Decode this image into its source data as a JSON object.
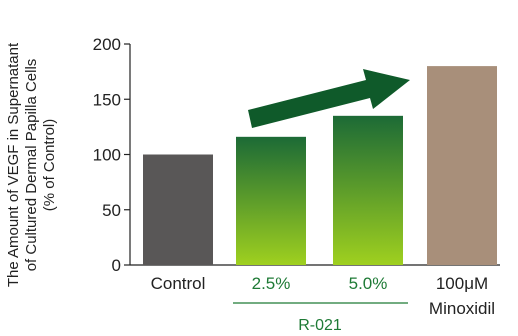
{
  "chart_data": {
    "type": "bar",
    "categories": [
      "Control",
      "2.5%",
      "5.0%",
      "100μM Minoxidil"
    ],
    "category_lines": [
      [
        "Control"
      ],
      [
        "2.5%"
      ],
      [
        "5.0%"
      ],
      [
        "100μM",
        "Minoxidil"
      ]
    ],
    "values": [
      100,
      116,
      135,
      180
    ],
    "ylabel_lines": [
      "The Amount of VEGF in Supernatant",
      "of Cultured Dermal Papilla Cells",
      "(% of Control)"
    ],
    "ylim": [
      0,
      200
    ],
    "yticks": [
      0,
      50,
      100,
      150,
      200
    ],
    "group_label": "R-021",
    "bar_colors": [
      "#595757",
      "green-gradient",
      "green-gradient",
      "#a88f7a"
    ],
    "category_label_colors": [
      "#222222",
      "#1e7a35",
      "#1e7a35",
      "#222222"
    ],
    "arrow_color": "#0f5a2a",
    "gradient_top": "#1c6a36",
    "gradient_bottom": "#9fd01f",
    "grid": false
  }
}
